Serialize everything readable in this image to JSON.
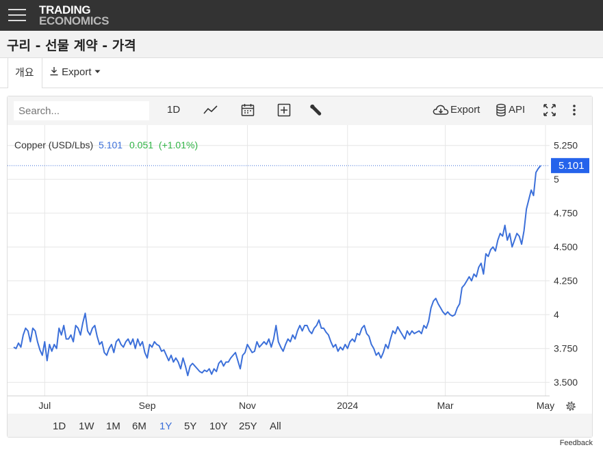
{
  "header": {
    "logo_line1": "TRADING",
    "logo_line2": "ECONOMICS",
    "page_title": "구리 - 선물 계약 - 가격"
  },
  "tabs": {
    "overview": "개요",
    "export": "Export"
  },
  "toolbar": {
    "search_placeholder": "Search...",
    "interval": "1D",
    "export": "Export",
    "api": "API"
  },
  "legend": {
    "name": "Copper (USD/Lbs)",
    "last": "5.101",
    "change": "0.051",
    "change_pct": "(+1.01%)"
  },
  "ranges": {
    "items": [
      "1D",
      "1W",
      "1M",
      "6M",
      "1Y",
      "5Y",
      "10Y",
      "25Y",
      "All"
    ],
    "active": "1Y"
  },
  "footer": {
    "feedback": "Feedback"
  },
  "colors": {
    "line": "#3b6fd9",
    "up": "#2fb344",
    "badge": "#2563eb"
  },
  "chart_data": {
    "type": "line",
    "title": "Copper (USD/Lbs)",
    "x_ticks": [
      "Jul",
      "Sep",
      "Nov",
      "2024",
      "Mar",
      "May"
    ],
    "x_tick_index": [
      13,
      56,
      98,
      140,
      181,
      223
    ],
    "y_ticks": [
      3.5,
      3.75,
      4,
      4.25,
      4.5,
      4.75,
      5,
      5.25
    ],
    "y_tick_labels": [
      "3.500",
      "3.750",
      "4",
      "4.250",
      "4.500",
      "4.750",
      "5",
      "5.250"
    ],
    "ylim": [
      3.4,
      5.4
    ],
    "last_value": 5.101,
    "grid": true,
    "series": [
      {
        "values": [
          3.76,
          3.75,
          3.79,
          3.76,
          3.85,
          3.9,
          3.88,
          3.8,
          3.9,
          3.88,
          3.8,
          3.74,
          3.7,
          3.8,
          3.66,
          3.78,
          3.73,
          3.78,
          3.75,
          3.9,
          3.85,
          3.92,
          3.82,
          3.82,
          3.85,
          3.8,
          3.92,
          3.9,
          3.85,
          3.94,
          4.01,
          3.88,
          3.85,
          3.9,
          3.92,
          3.84,
          3.78,
          3.8,
          3.72,
          3.7,
          3.75,
          3.78,
          3.72,
          3.8,
          3.82,
          3.78,
          3.76,
          3.8,
          3.82,
          3.78,
          3.82,
          3.75,
          3.82,
          3.77,
          3.8,
          3.72,
          3.68,
          3.78,
          3.76,
          3.8,
          3.78,
          3.77,
          3.73,
          3.74,
          3.7,
          3.66,
          3.7,
          3.65,
          3.68,
          3.65,
          3.6,
          3.68,
          3.62,
          3.55,
          3.62,
          3.64,
          3.62,
          3.6,
          3.58,
          3.57,
          3.59,
          3.58,
          3.6,
          3.56,
          3.6,
          3.58,
          3.64,
          3.66,
          3.62,
          3.65,
          3.65,
          3.68,
          3.7,
          3.72,
          3.66,
          3.6,
          3.7,
          3.72,
          3.78,
          3.75,
          3.72,
          3.73,
          3.8,
          3.76,
          3.78,
          3.8,
          3.78,
          3.82,
          3.76,
          3.82,
          3.92,
          3.8,
          3.76,
          3.73,
          3.78,
          3.82,
          3.8,
          3.85,
          3.82,
          3.88,
          3.92,
          3.88,
          3.92,
          3.92,
          3.88,
          3.86,
          3.9,
          3.92,
          3.96,
          3.9,
          3.9,
          3.87,
          3.85,
          3.8,
          3.76,
          3.78,
          3.73,
          3.76,
          3.74,
          3.78,
          3.75,
          3.8,
          3.82,
          3.8,
          3.86,
          3.85,
          3.9,
          3.92,
          3.86,
          3.84,
          3.78,
          3.75,
          3.7,
          3.72,
          3.68,
          3.72,
          3.78,
          3.75,
          3.82,
          3.88,
          3.86,
          3.91,
          3.88,
          3.85,
          3.82,
          3.88,
          3.85,
          3.88,
          3.86,
          3.87,
          3.88,
          3.86,
          3.92,
          3.9,
          3.95,
          4.05,
          4.1,
          4.12,
          4.08,
          4.05,
          4.02,
          4.0,
          4.02,
          4.0,
          3.99,
          4.0,
          4.05,
          4.08,
          4.2,
          4.22,
          4.25,
          4.28,
          4.25,
          4.3,
          4.28,
          4.35,
          4.38,
          4.3,
          4.45,
          4.43,
          4.48,
          4.5,
          4.47,
          4.55,
          4.6,
          4.58,
          4.66,
          4.55,
          4.6,
          4.5,
          4.55,
          4.6,
          4.58,
          4.52,
          4.62,
          4.78,
          4.85,
          4.92,
          4.88,
          5.05,
          5.08,
          5.101
        ]
      }
    ]
  }
}
